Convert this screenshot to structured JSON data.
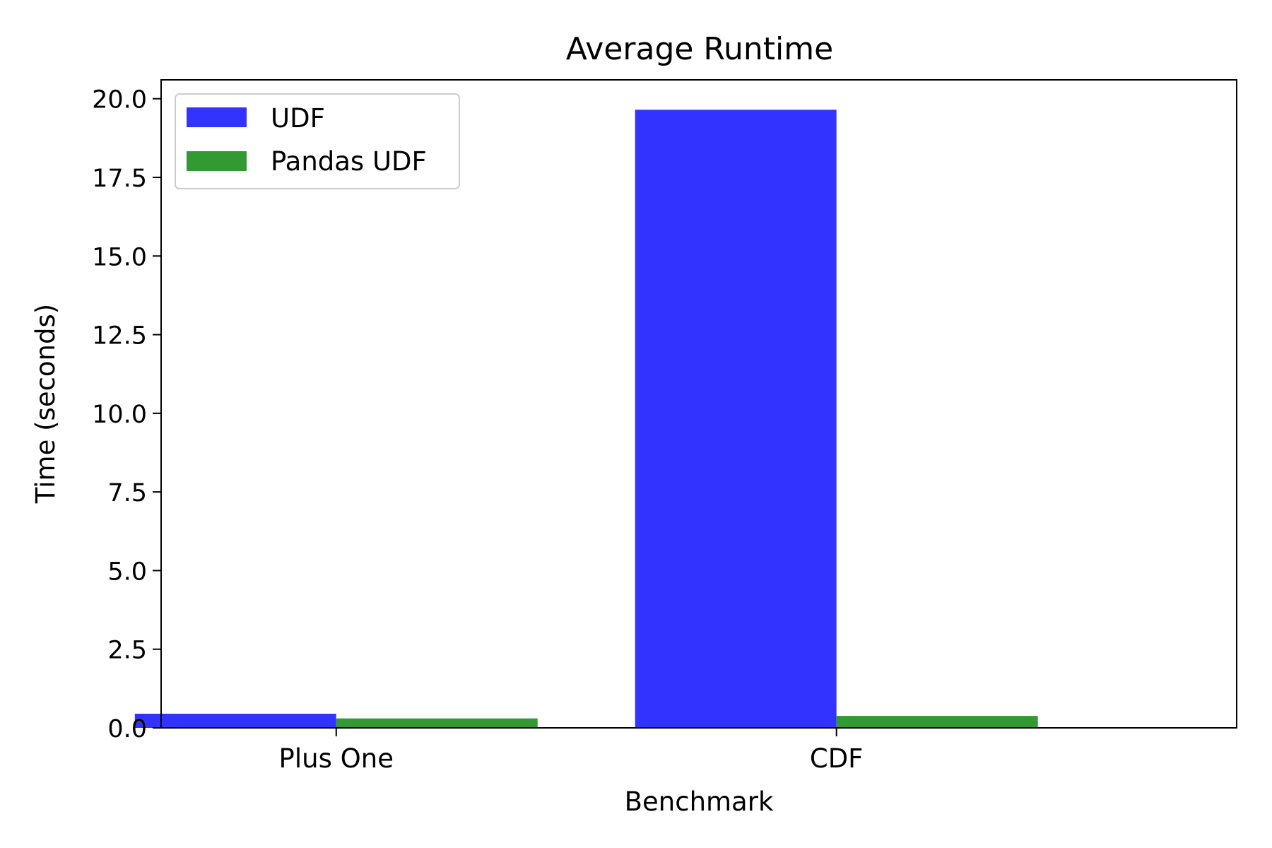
{
  "chart_data": {
    "type": "bar",
    "title": "Average Runtime",
    "xlabel": "Benchmark",
    "ylabel": "Time (seconds)",
    "categories": [
      "Plus One",
      "CDF"
    ],
    "series": [
      {
        "name": "UDF",
        "values": [
          0.45,
          19.65
        ],
        "color": "#3333ff"
      },
      {
        "name": "Pandas UDF",
        "values": [
          0.3,
          0.38
        ],
        "color": "#339933"
      }
    ],
    "ylim": [
      0,
      20.6
    ],
    "yticks": [
      0.0,
      2.5,
      5.0,
      7.5,
      10.0,
      12.5,
      15.0,
      17.5,
      20.0
    ],
    "ytick_labels": [
      "0.0",
      "2.5",
      "5.0",
      "7.5",
      "10.0",
      "12.5",
      "15.0",
      "17.5",
      "20.0"
    ],
    "grid": false,
    "legend_position": "top-left"
  }
}
